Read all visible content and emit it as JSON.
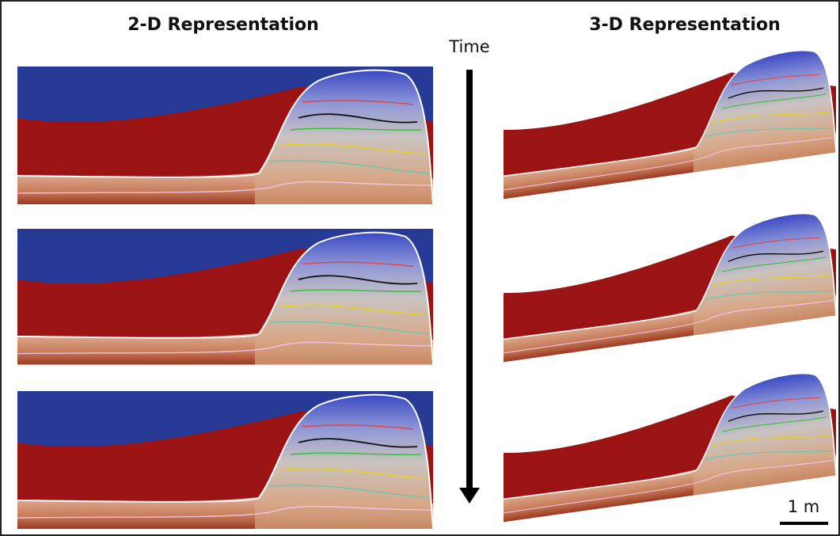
{
  "left_title": "2-D Representation",
  "right_title": "3-D Representation",
  "time_label": "Time",
  "scale_label": "1 m"
}
